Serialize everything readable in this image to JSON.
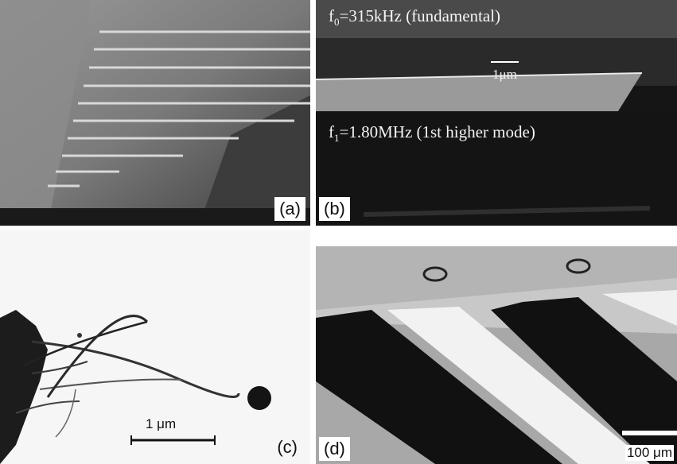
{
  "figure": {
    "panels": [
      {
        "id": "a",
        "label": "(a)"
      },
      {
        "id": "b",
        "label": "(b)",
        "mode0_symbol": "f",
        "mode0_sub": "0",
        "mode0_text": "=315kHz (fundamental)",
        "mode1_symbol": "f",
        "mode1_sub": "1",
        "mode1_text": "=1.80MHz (1st higher mode)",
        "scale_label": "1μm"
      },
      {
        "id": "c",
        "label": "(c)",
        "scale_label": "1 μm"
      },
      {
        "id": "d",
        "label": "(d)",
        "scale_label": "100 μm"
      }
    ]
  }
}
